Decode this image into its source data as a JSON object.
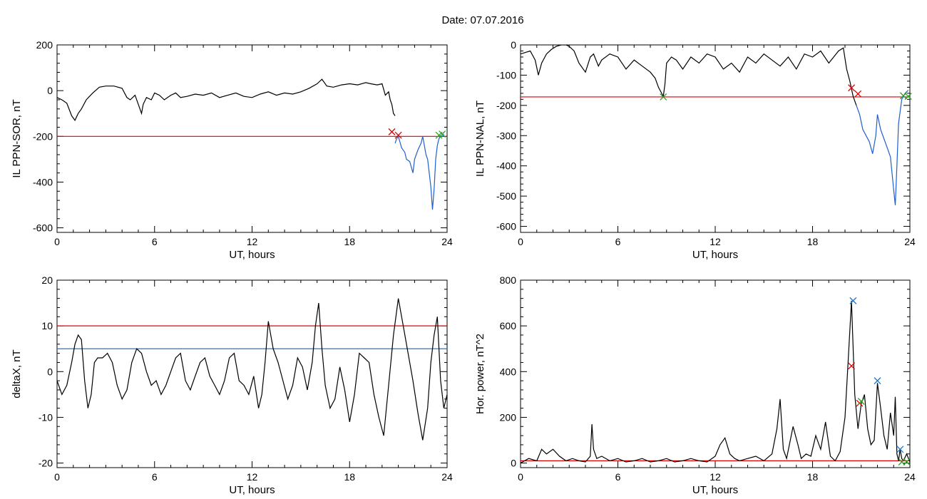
{
  "figure": {
    "title": "Date:  07.07.2016"
  },
  "chart_data": [
    {
      "id": "sor",
      "type": "line",
      "title": "",
      "xlabel": "UT, hours",
      "ylabel": "IL PPN-SOR, nT",
      "xlim": [
        0,
        24
      ],
      "ylim": [
        -620,
        200
      ],
      "xticks": [
        0,
        6,
        12,
        18,
        24
      ],
      "yticks": [
        200,
        0,
        -200,
        -400,
        -600
      ],
      "grid": false,
      "series": [
        {
          "color": "#000000",
          "x": [
            0,
            0.3,
            0.6,
            0.9,
            1.1,
            1.3,
            1.5,
            1.8,
            2.2,
            2.6,
            3.0,
            3.5,
            4.0,
            4.3,
            4.5,
            4.8,
            5.0,
            5.2,
            5.3,
            5.5,
            5.8,
            6.0,
            6.3,
            6.6,
            7.0,
            7.3,
            7.6,
            8.0,
            8.5,
            9.0,
            9.5,
            10.0,
            10.5,
            11.0,
            11.5,
            12.0,
            12.5,
            13.0,
            13.5,
            14.0,
            14.5,
            15.0,
            15.5,
            16.0,
            16.3,
            16.6,
            17.0,
            17.5,
            18.0,
            18.5,
            19.0,
            19.3,
            19.7,
            20.0,
            20.2,
            20.4,
            20.5,
            20.6,
            20.7,
            20.8
          ],
          "y": [
            -30,
            -40,
            -55,
            -110,
            -130,
            -100,
            -80,
            -40,
            -10,
            15,
            20,
            20,
            10,
            -30,
            -40,
            -20,
            -60,
            -100,
            -60,
            -30,
            -40,
            -10,
            -20,
            -40,
            -20,
            -10,
            -30,
            -25,
            -15,
            -20,
            -10,
            -30,
            -20,
            -10,
            -25,
            -30,
            -15,
            -5,
            -20,
            -10,
            -15,
            -5,
            10,
            30,
            50,
            20,
            15,
            25,
            30,
            25,
            35,
            30,
            25,
            30,
            -20,
            -5,
            -40,
            -60,
            -100,
            -110
          ]
        },
        {
          "color": "#1f5fd0",
          "x": [
            20.8,
            20.9,
            21.0,
            21.2,
            21.4,
            21.5,
            21.7,
            21.9,
            22.0,
            22.2,
            22.4,
            22.5,
            22.7,
            22.8,
            23.0,
            23.1,
            23.2,
            23.3,
            23.4,
            23.5,
            23.6,
            23.7,
            23.8
          ],
          "y": [
            -230,
            -210,
            -200,
            -250,
            -270,
            -300,
            -310,
            -360,
            -300,
            -260,
            -230,
            -200,
            -280,
            -300,
            -420,
            -520,
            -430,
            -300,
            -240,
            -210,
            -200,
            -200,
            -190
          ]
        }
      ],
      "hlines": [
        {
          "y": -200,
          "color": "#e00000"
        }
      ],
      "markers": [
        {
          "x": 20.6,
          "y": -180,
          "color": "#e00000"
        },
        {
          "x": 21.0,
          "y": -195,
          "color": "#e00000"
        },
        {
          "x": 23.5,
          "y": -195,
          "color": "#2aa02a"
        },
        {
          "x": 23.7,
          "y": -190,
          "color": "#2aa02a"
        }
      ]
    },
    {
      "id": "nal",
      "type": "line",
      "title": "",
      "xlabel": "UT, hours",
      "ylabel": "IL PPN-NAL, nT",
      "xlim": [
        0,
        24
      ],
      "ylim": [
        -620,
        0
      ],
      "xticks": [
        0,
        6,
        12,
        18,
        24
      ],
      "yticks": [
        0,
        -100,
        -200,
        -300,
        -400,
        -500,
        -600
      ],
      "grid": false,
      "series": [
        {
          "color": "#000000",
          "x": [
            0,
            0.3,
            0.6,
            0.9,
            1.1,
            1.3,
            1.6,
            1.9,
            2.2,
            2.5,
            2.8,
            3.0,
            3.3,
            3.6,
            4.0,
            4.3,
            4.5,
            4.8,
            5.0,
            5.5,
            6.0,
            6.5,
            7.0,
            7.5,
            8.0,
            8.3,
            8.5,
            8.7,
            8.8,
            8.9,
            9.0,
            9.3,
            9.6,
            10.0,
            10.5,
            11.0,
            11.5,
            12.0,
            12.5,
            13.0,
            13.5,
            14.0,
            14.5,
            15.0,
            15.5,
            16.0,
            16.5,
            17.0,
            17.5,
            18.0,
            18.5,
            19.0,
            19.3,
            19.6,
            19.9,
            20.1,
            20.3,
            20.5,
            20.7
          ],
          "y": [
            -30,
            -25,
            -20,
            -50,
            -100,
            -60,
            -30,
            -15,
            -5,
            0,
            0,
            -5,
            -20,
            -60,
            -90,
            -40,
            -30,
            -70,
            -50,
            -30,
            -40,
            -80,
            -50,
            -70,
            -90,
            -110,
            -140,
            -160,
            -170,
            -130,
            -60,
            -40,
            -50,
            -80,
            -40,
            -60,
            -30,
            -40,
            -80,
            -60,
            -90,
            -40,
            -60,
            -30,
            -50,
            -70,
            -40,
            -80,
            -30,
            -40,
            -20,
            -60,
            -40,
            -20,
            -10,
            -80,
            -120,
            -170,
            -200
          ]
        },
        {
          "color": "#1f5fd0",
          "x": [
            20.7,
            20.9,
            21.1,
            21.3,
            21.5,
            21.7,
            21.9,
            22.0,
            22.2,
            22.4,
            22.6,
            22.8,
            23.0,
            23.1,
            23.2,
            23.3,
            23.5,
            23.7,
            23.9
          ],
          "y": [
            -200,
            -230,
            -280,
            -300,
            -320,
            -360,
            -300,
            -230,
            -280,
            -310,
            -340,
            -370,
            -480,
            -530,
            -400,
            -260,
            -180,
            -160,
            -150
          ]
        }
      ],
      "hlines": [
        {
          "y": -172,
          "color": "#e00000"
        }
      ],
      "markers": [
        {
          "x": 8.8,
          "y": -172,
          "color": "#2aa02a"
        },
        {
          "x": 20.4,
          "y": -142,
          "color": "#e00000"
        },
        {
          "x": 20.8,
          "y": -162,
          "color": "#e00000"
        },
        {
          "x": 23.6,
          "y": -168,
          "color": "#2aa02a"
        },
        {
          "x": 23.9,
          "y": -170,
          "color": "#2aa02a"
        }
      ]
    },
    {
      "id": "deltax",
      "type": "line",
      "title": "",
      "xlabel": "UT, hours",
      "ylabel": "deltaX, nT",
      "xlim": [
        0,
        24
      ],
      "ylim": [
        -21,
        20
      ],
      "xticks": [
        0,
        6,
        12,
        18,
        24
      ],
      "yticks": [
        20,
        10,
        0,
        -10,
        -20
      ],
      "grid": false,
      "series": [
        {
          "color": "#000000",
          "x": [
            0,
            0.3,
            0.6,
            0.9,
            1.1,
            1.3,
            1.5,
            1.7,
            1.9,
            2.1,
            2.3,
            2.5,
            2.8,
            3.1,
            3.4,
            3.7,
            4.0,
            4.3,
            4.6,
            4.9,
            5.2,
            5.5,
            5.8,
            6.1,
            6.4,
            6.7,
            7.0,
            7.3,
            7.6,
            7.9,
            8.2,
            8.5,
            8.8,
            9.1,
            9.4,
            9.7,
            10.0,
            10.3,
            10.6,
            10.9,
            11.2,
            11.5,
            11.8,
            12.1,
            12.4,
            12.6,
            12.8,
            13.0,
            13.3,
            13.6,
            13.9,
            14.2,
            14.5,
            14.8,
            15.1,
            15.4,
            15.7,
            15.9,
            16.1,
            16.3,
            16.5,
            16.8,
            17.1,
            17.4,
            17.7,
            18.0,
            18.3,
            18.6,
            18.9,
            19.2,
            19.5,
            19.8,
            20.1,
            20.4,
            20.7,
            21.0,
            21.3,
            21.6,
            21.9,
            22.2,
            22.5,
            22.8,
            23.0,
            23.2,
            23.4,
            23.6,
            23.8,
            24.0
          ],
          "y": [
            -2,
            -5,
            -3,
            2,
            6,
            8,
            7,
            -2,
            -8,
            -5,
            2,
            3,
            3,
            4,
            2,
            -3,
            -6,
            -4,
            2,
            5,
            4,
            0,
            -3,
            -2,
            -5,
            -3,
            0,
            3,
            4,
            -2,
            -4,
            -1,
            2,
            3,
            -1,
            -3,
            -5,
            -2,
            3,
            4,
            -2,
            -3,
            -5,
            -1,
            -8,
            -5,
            2,
            11,
            5,
            2,
            -2,
            -6,
            -3,
            3,
            1,
            -4,
            2,
            10,
            15,
            5,
            -3,
            -8,
            -6,
            1,
            -4,
            -11,
            -5,
            4,
            3,
            2,
            -5,
            -10,
            -14,
            -3,
            8,
            16,
            10,
            4,
            -2,
            -9,
            -15,
            -8,
            2,
            8,
            12,
            -2,
            -8,
            -5
          ]
        }
      ],
      "hlines": [
        {
          "y": 10,
          "color": "#e00000"
        },
        {
          "y": 5,
          "color": "#1f78c8"
        }
      ],
      "markers": []
    },
    {
      "id": "power",
      "type": "line",
      "title": "",
      "xlabel": "UT, hours",
      "ylabel": "Hor. power, nT^2",
      "xlim": [
        0,
        24
      ],
      "ylim": [
        -20,
        800
      ],
      "xticks": [
        0,
        6,
        12,
        18,
        24
      ],
      "yticks": [
        800,
        600,
        400,
        200,
        0
      ],
      "grid": false,
      "series": [
        {
          "color": "#000000",
          "x": [
            0,
            0.5,
            1.0,
            1.3,
            1.6,
            2.0,
            2.4,
            2.8,
            3.2,
            3.6,
            4.0,
            4.3,
            4.4,
            4.5,
            4.7,
            5.0,
            5.5,
            6.0,
            6.5,
            7.0,
            7.5,
            8.0,
            8.5,
            9.0,
            9.5,
            10.0,
            10.5,
            11.0,
            11.5,
            12.0,
            12.3,
            12.6,
            12.9,
            13.2,
            13.5,
            14.0,
            14.5,
            15.0,
            15.5,
            15.8,
            16.0,
            16.2,
            16.4,
            16.8,
            17.1,
            17.3,
            17.6,
            17.9,
            18.2,
            18.5,
            18.8,
            19.1,
            19.4,
            19.7,
            20.0,
            20.2,
            20.4,
            20.6,
            20.8,
            21.0,
            21.2,
            21.4,
            21.6,
            21.8,
            22.0,
            22.2,
            22.4,
            22.6,
            22.8,
            23.0,
            23.1,
            23.2,
            23.3,
            23.4,
            23.5,
            23.6,
            23.8,
            24.0
          ],
          "y": [
            0,
            20,
            10,
            60,
            40,
            60,
            30,
            10,
            20,
            10,
            5,
            30,
            170,
            60,
            20,
            30,
            10,
            20,
            5,
            10,
            20,
            5,
            10,
            20,
            5,
            10,
            20,
            10,
            5,
            30,
            80,
            110,
            40,
            20,
            10,
            20,
            30,
            10,
            40,
            150,
            280,
            60,
            20,
            160,
            80,
            20,
            40,
            30,
            120,
            60,
            180,
            30,
            10,
            50,
            200,
            450,
            710,
            300,
            150,
            260,
            300,
            150,
            80,
            100,
            350,
            240,
            120,
            60,
            220,
            120,
            290,
            40,
            10,
            60,
            20,
            10,
            40,
            5
          ]
        }
      ],
      "hlines": [
        {
          "y": 10,
          "color": "#e00000"
        }
      ],
      "markers": [
        {
          "x": 20.5,
          "y": 710,
          "color": "#1f78c8"
        },
        {
          "x": 20.4,
          "y": 425,
          "color": "#e00000"
        },
        {
          "x": 20.9,
          "y": 262,
          "color": "#e00000"
        },
        {
          "x": 21.0,
          "y": 270,
          "color": "#2aa02a"
        },
        {
          "x": 22.0,
          "y": 360,
          "color": "#1f78c8"
        },
        {
          "x": 23.4,
          "y": 60,
          "color": "#1f78c8"
        },
        {
          "x": 23.5,
          "y": 5,
          "color": "#2aa02a"
        },
        {
          "x": 23.8,
          "y": 5,
          "color": "#2aa02a"
        }
      ]
    }
  ]
}
